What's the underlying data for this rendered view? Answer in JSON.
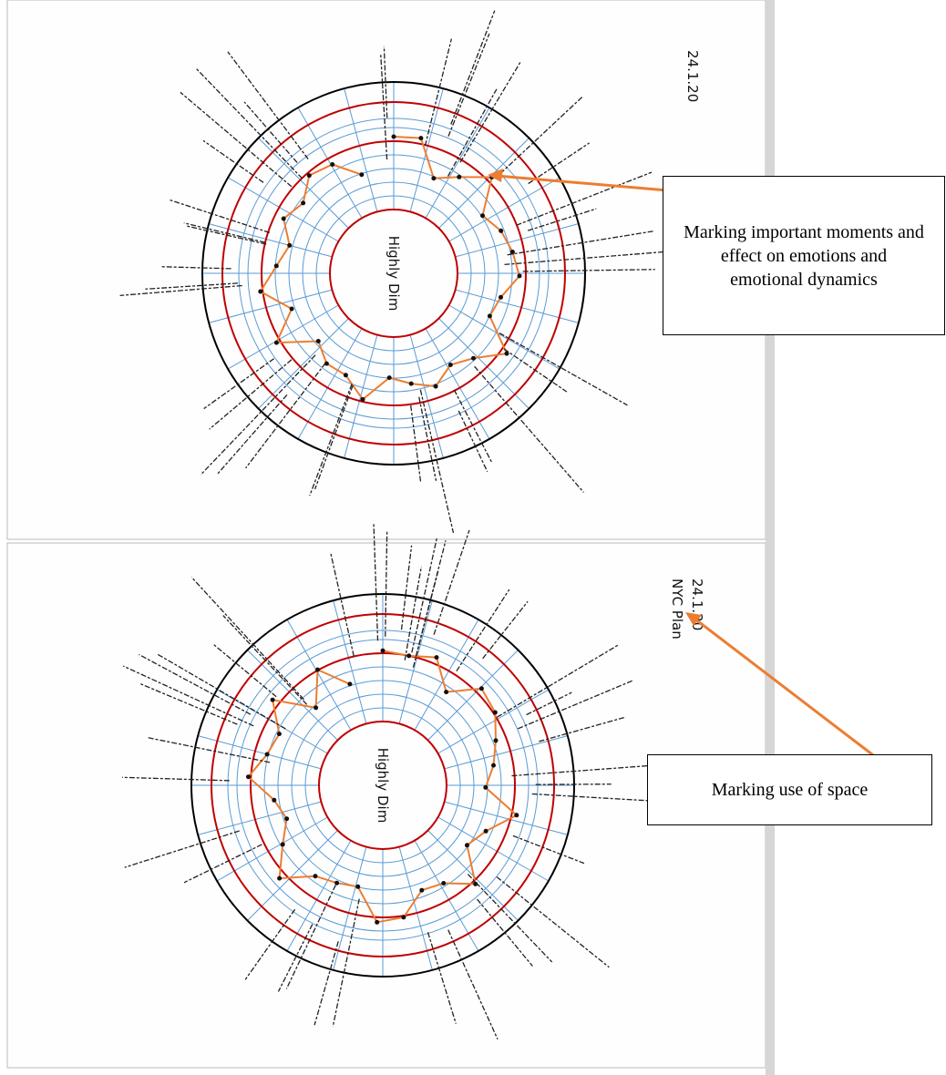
{
  "diagrams": [
    {
      "center_label": "Highly Dim",
      "date": "24.1.20"
    },
    {
      "center_label": "Highly Dim",
      "date": "24.1.20",
      "heading": "NYC Plan"
    }
  ],
  "callouts": [
    {
      "text": "Marking important moments and effect on emotions and emotional dynamics"
    },
    {
      "text": "Marking use of space"
    }
  ]
}
